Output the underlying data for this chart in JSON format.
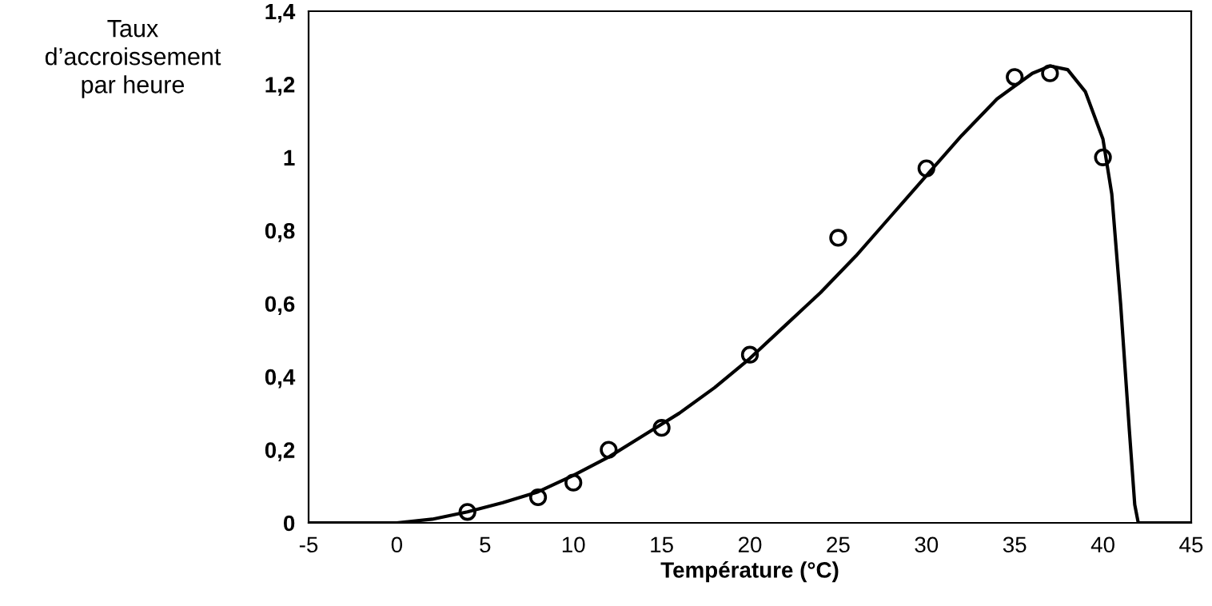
{
  "chart_data": {
    "type": "line",
    "xlabel": "Température (°C)",
    "ylabel": "Taux\nd’accroissement\npar heure",
    "xlim": [
      -5,
      45
    ],
    "xticks": [
      -5,
      0,
      5,
      10,
      15,
      20,
      25,
      30,
      35,
      40,
      45
    ],
    "ylim": [
      0,
      1.4
    ],
    "yticks": [
      0,
      {
        "value": 0.2,
        "label": "0,2"
      },
      {
        "value": 0.4,
        "label": "0,4"
      },
      {
        "value": 0.6,
        "label": "0,6"
      },
      {
        "value": 0.8,
        "label": "0,8"
      },
      1,
      {
        "value": 1.2,
        "label": "1,2"
      },
      {
        "value": 1.4,
        "label": "1,4"
      }
    ],
    "grid": false,
    "legend": false,
    "series": [
      {
        "type": "scatter",
        "color": "#000000",
        "marker": "circle",
        "x": [
          4,
          8,
          10,
          12,
          15,
          20,
          25,
          30,
          35,
          37,
          40
        ],
        "values": [
          0.03,
          0.07,
          0.11,
          0.2,
          0.26,
          0.46,
          0.78,
          0.97,
          1.22,
          1.23,
          1.0
        ]
      },
      {
        "color": "#000000",
        "line_style": "solid",
        "x": [
          -5,
          0,
          2,
          4,
          6,
          8,
          10,
          12,
          14,
          16,
          18,
          20,
          22,
          24,
          26,
          28,
          30,
          32,
          34,
          36,
          37,
          38,
          39,
          40,
          40.5,
          41,
          41.5,
          41.8,
          42,
          45
        ],
        "values": [
          0,
          0,
          0.01,
          0.03,
          0.055,
          0.085,
          0.13,
          0.18,
          0.24,
          0.3,
          0.37,
          0.45,
          0.54,
          0.63,
          0.73,
          0.84,
          0.95,
          1.06,
          1.16,
          1.23,
          1.25,
          1.24,
          1.18,
          1.05,
          0.9,
          0.6,
          0.25,
          0.05,
          0,
          0
        ]
      }
    ]
  }
}
